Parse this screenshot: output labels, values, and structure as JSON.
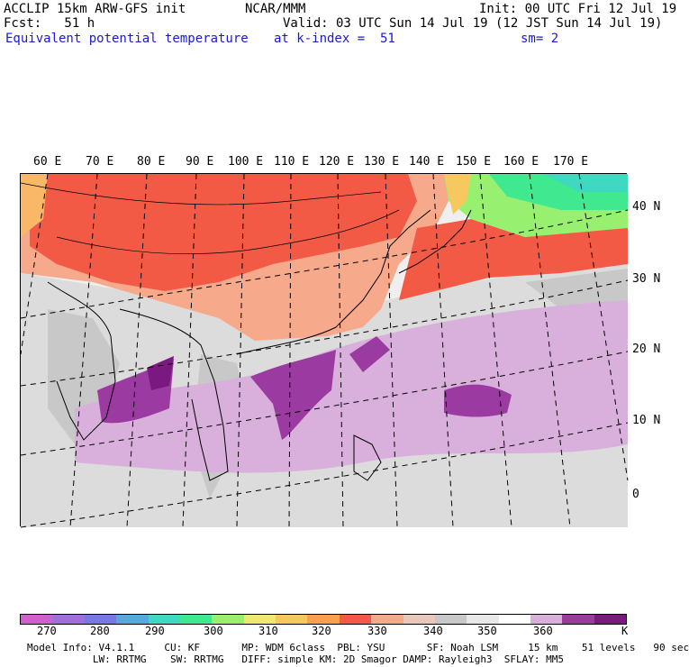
{
  "header": {
    "model": "ACCLIP 15km ARW-GFS init",
    "org": "NCAR/MMM",
    "init": "Init: 00 UTC Fri 12 Jul 19",
    "fcst": "Fcst:   51 h",
    "valid": "Valid: 03 UTC Sun 14 Jul 19 (12 JST Sun 14 Jul 19)",
    "field": "Equivalent potential temperature",
    "level": "at k-index =  51",
    "smooth": "sm= 2"
  },
  "map": {
    "lon_labels": [
      "60 E",
      "70 E",
      "80 E",
      "90 E",
      "100 E",
      "110 E",
      "120 E",
      "130 E",
      "140 E",
      "150 E",
      "160 E",
      "170 E"
    ],
    "lat_labels": [
      "40 N",
      "30 N",
      "20 N",
      "10 N",
      "0"
    ],
    "colors": {
      "grey_light": "#f0f0f0",
      "grey_mid": "#c8c8c8",
      "lavender": "#d9b0dc",
      "purple": "#9b3aa0",
      "purple_dark": "#7a1a80",
      "red": "#f25a46",
      "salmon": "#f7a98c",
      "orange": "#f8b868",
      "yellow": "#f0e870",
      "green_light": "#98f070",
      "green": "#40e890",
      "teal": "#40d8c0"
    }
  },
  "colorbar": {
    "colors": [
      "#d060d0",
      "#a070d8",
      "#7878e0",
      "#58a8e0",
      "#40d8c0",
      "#40e890",
      "#98f070",
      "#f0e870",
      "#f8c860",
      "#f8a050",
      "#f25a46",
      "#f7a98c",
      "#e8c8b8",
      "#c8c8c8",
      "#e8e8e8",
      "#ffffff",
      "#d9b0dc",
      "#9b3aa0",
      "#7a1a80"
    ],
    "labels": [
      "270",
      "280",
      "290",
      "300",
      "310",
      "320",
      "330",
      "340",
      "350",
      "360"
    ],
    "unit": "K"
  },
  "footer": {
    "line1": "Model Info: V4.1.1     CU: KF       MP: WDM 6class  PBL: YSU       SF: Noah LSM     15 km    51 levels   90 sec",
    "line2": "           LW: RRTMG    SW: RRTMG   DIFF: simple KM: 2D Smagor DAMP: Rayleigh3  SFLAY: MM5"
  }
}
